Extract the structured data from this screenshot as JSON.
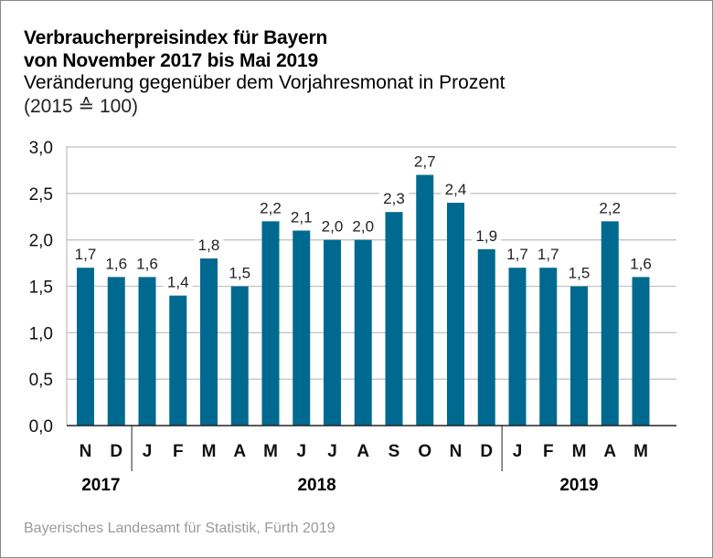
{
  "chart_data": {
    "type": "bar",
    "title": "Verbraucherpreisindex für Bayern",
    "title_line2": "von November 2017 bis Mai 2019",
    "subtitle": "Veränderung gegenüber dem Vorjahresmonat in Prozent",
    "base_note": "(2015 ≙ 100)",
    "xlabel": "",
    "ylabel": "",
    "ylim": [
      0,
      3.0
    ],
    "yticks": [
      "0,0",
      "0,5",
      "1,0",
      "1,5",
      "2,0",
      "2,5",
      "3,0"
    ],
    "ytick_values": [
      0,
      0.5,
      1.0,
      1.5,
      2.0,
      2.5,
      3.0
    ],
    "grid": true,
    "categories": [
      "N",
      "D",
      "J",
      "F",
      "M",
      "A",
      "M",
      "J",
      "J",
      "A",
      "S",
      "O",
      "N",
      "D",
      "J",
      "F",
      "M",
      "A",
      "M"
    ],
    "values": [
      1.7,
      1.6,
      1.6,
      1.4,
      1.8,
      1.5,
      2.2,
      2.1,
      2.0,
      2.0,
      2.3,
      2.7,
      2.4,
      1.9,
      1.7,
      1.7,
      1.5,
      2.2,
      1.6
    ],
    "value_labels": [
      "1,7",
      "1,6",
      "1,6",
      "1,4",
      "1,8",
      "1,5",
      "2,2",
      "2,1",
      "2,0",
      "2,0",
      "2,3",
      "2,7",
      "2,4",
      "1,9",
      "1,7",
      "1,7",
      "1,5",
      "2,2",
      "1,6"
    ],
    "year_groups": [
      {
        "label": "2017",
        "start": 0,
        "end": 1
      },
      {
        "label": "2018",
        "start": 2,
        "end": 13
      },
      {
        "label": "2019",
        "start": 14,
        "end": 18
      }
    ],
    "bar_color": "#006990",
    "source": "Bayerisches Landesamt für Statistik, Fürth 2019"
  }
}
